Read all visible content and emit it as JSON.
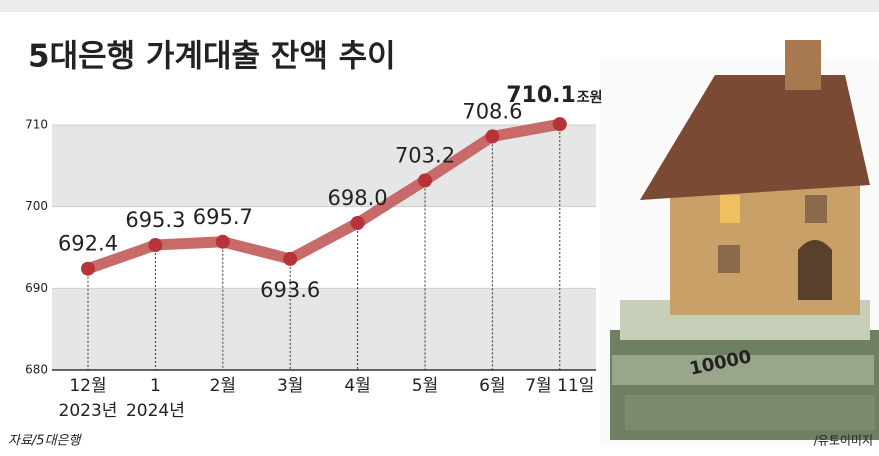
{
  "chart_data": {
    "type": "line",
    "title": "5대은행 가계대출 잔액 추이",
    "categories": [
      "12월",
      "1",
      "2월",
      "3월",
      "4월",
      "5월",
      "6월",
      "7월 11일"
    ],
    "year_labels": [
      "2023년",
      "2024년",
      null,
      null,
      null,
      null,
      null,
      null
    ],
    "values": [
      692.4,
      695.3,
      695.7,
      693.6,
      698.0,
      703.2,
      708.6,
      710.1
    ],
    "value_labels": [
      "692.4",
      "695.3",
      "695.7",
      "693.6",
      "698.0",
      "703.2",
      "708.6",
      "710.1"
    ],
    "unit": "조원",
    "ylim": [
      680,
      710
    ],
    "yticks": [
      680,
      690,
      700,
      710
    ],
    "line_color": "#c86a6a",
    "marker_color": "#b8323a",
    "highlight_color": "#c8102e",
    "band_color": "#e6e6e6",
    "source": "자료/5대은행",
    "photo_credit": "/유토이미지"
  }
}
